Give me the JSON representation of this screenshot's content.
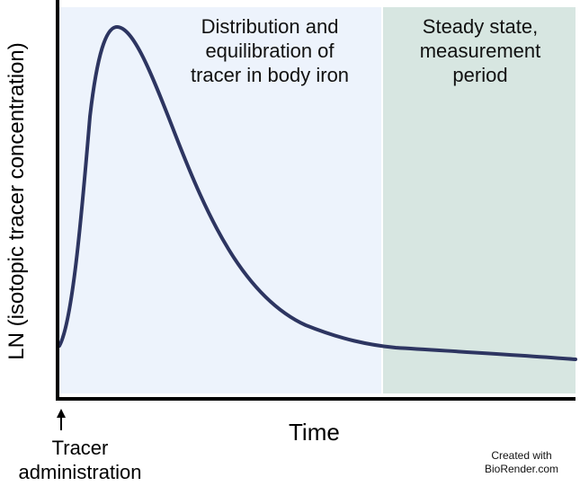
{
  "chart_data": {
    "type": "line",
    "title": "",
    "ylabel": "LN (isotopic tracer concentration)",
    "xlabel": "Time",
    "x_start_annotation": [
      "Tracer",
      "administration"
    ],
    "phases": [
      {
        "lines": [
          "Distribution and",
          "equilibration of",
          "tracer in body iron"
        ],
        "color": "#edf3fc"
      },
      {
        "lines": [
          "Steady state,",
          "measurement",
          "period"
        ],
        "color": "#d7e6e1"
      }
    ],
    "series_color": "#2d3561",
    "credit": [
      "Created with",
      "BioRender.com"
    ]
  }
}
